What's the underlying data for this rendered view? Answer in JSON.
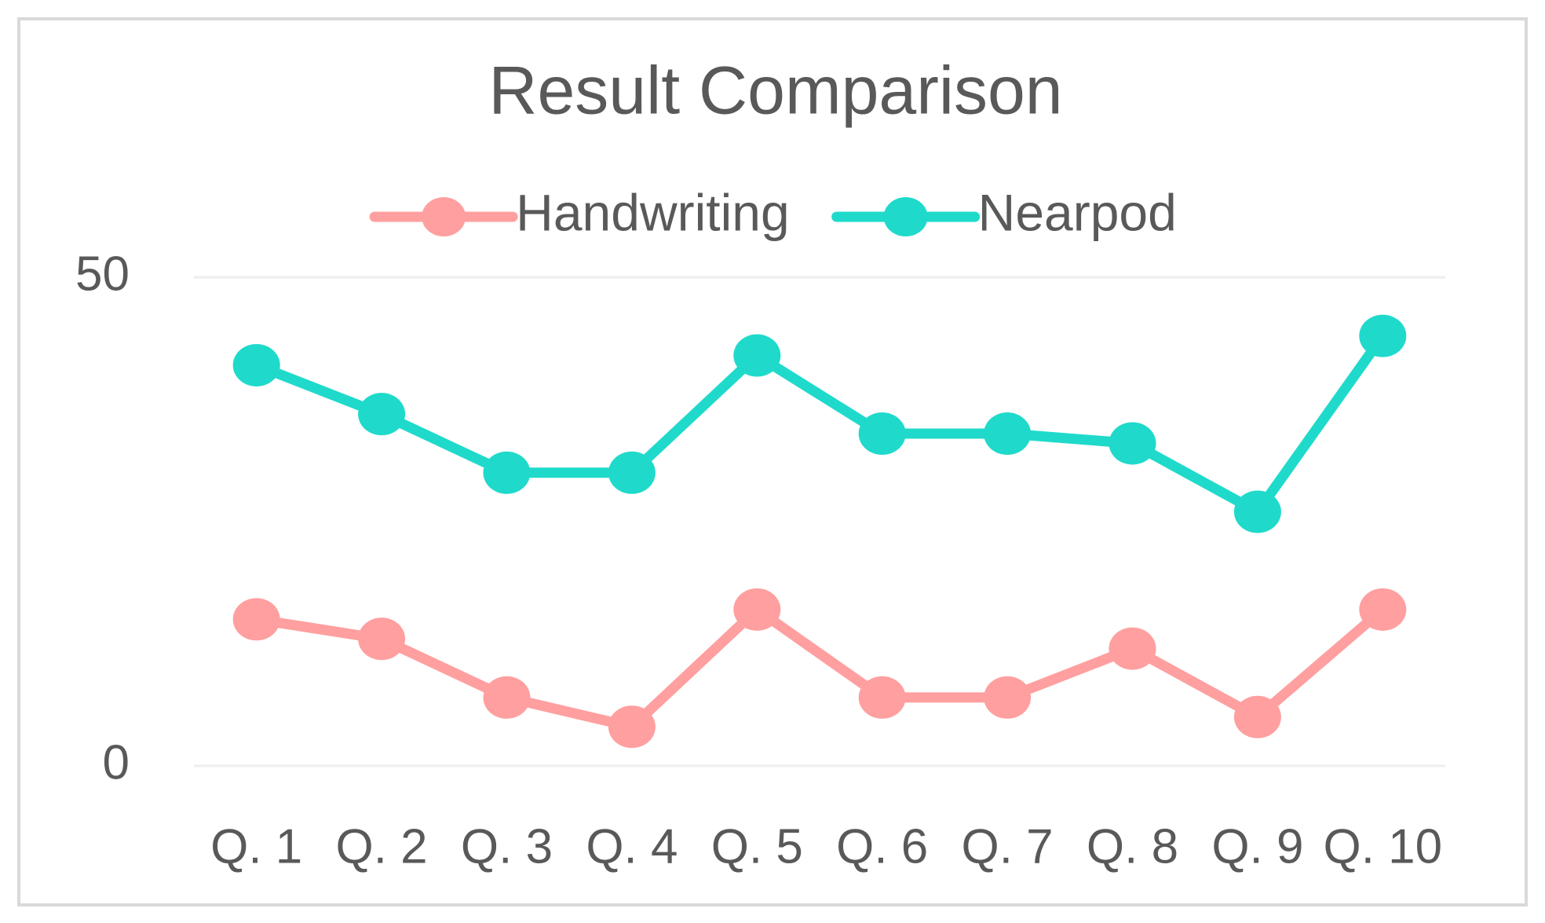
{
  "chart_data": {
    "type": "line",
    "title": "Result Comparison",
    "categories": [
      "Q. 1",
      "Q. 2",
      "Q. 3",
      "Q. 4",
      "Q. 5",
      "Q. 6",
      "Q. 7",
      "Q. 8",
      "Q. 9",
      "Q. 10"
    ],
    "series": [
      {
        "name": "Handwriting",
        "color": "#ff9f9f",
        "values": [
          15,
          13,
          7,
          4,
          16,
          7,
          7,
          12,
          5,
          16
        ]
      },
      {
        "name": "Nearpod",
        "color": "#1fdacb",
        "values": [
          41,
          36,
          30,
          30,
          42,
          34,
          34,
          33,
          26,
          44
        ]
      }
    ],
    "ylim": [
      0,
      50
    ],
    "yticks": [
      0,
      50
    ],
    "grid": true,
    "legend": "top"
  }
}
